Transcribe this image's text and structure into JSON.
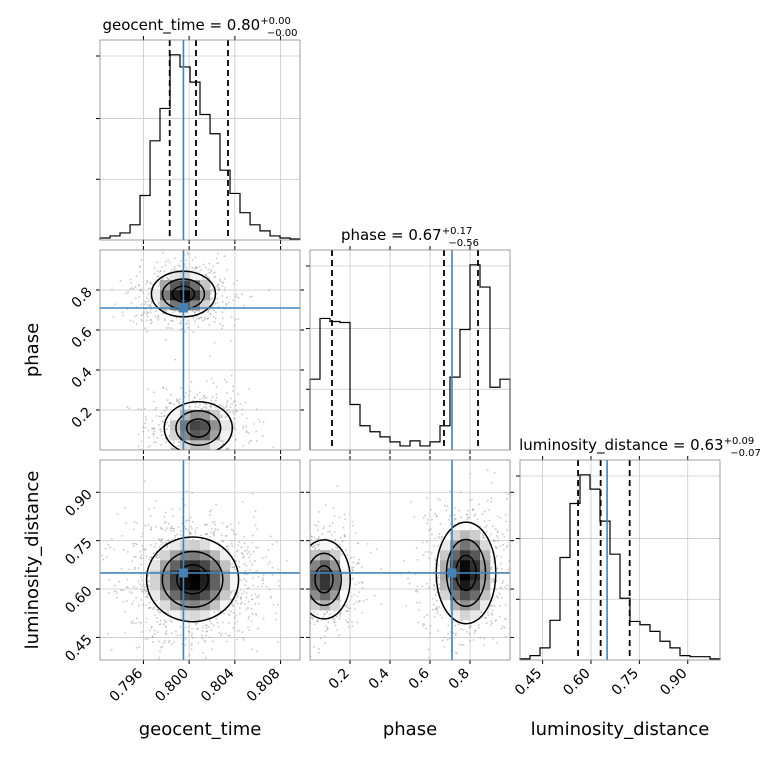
{
  "chart_data": {
    "type": "corner",
    "parameters": [
      "geocent_time",
      "phase",
      "luminosity_distance"
    ],
    "truths": {
      "geocent_time": 0.7995,
      "phase": 0.71,
      "luminosity_distance": 0.65
    },
    "titles": {
      "geocent_time": {
        "prefix": "geocent_time = ",
        "median": "0.80",
        "plus": "+0.00",
        "minus": "−0.00"
      },
      "phase": {
        "prefix": "phase = ",
        "median": "0.67",
        "plus": "+0.17",
        "minus": "−0.56"
      },
      "luminosity_distance": {
        "prefix": "luminosity_distance = ",
        "median": "0.63",
        "plus": "+0.09",
        "minus": "−0.07"
      }
    },
    "ranges": {
      "geocent_time": [
        0.7922,
        0.8097
      ],
      "phase": [
        0.0,
        1.0
      ],
      "luminosity_distance": [
        0.38,
        1.0
      ]
    },
    "ticks": {
      "geocent_time": {
        "values": [
          0.796,
          0.8,
          0.804,
          0.808
        ],
        "labels": [
          "0.796",
          "0.800",
          "0.804",
          "0.808"
        ]
      },
      "phase": {
        "values": [
          0.2,
          0.4,
          0.6,
          0.8
        ],
        "labels": [
          "0.2",
          "0.4",
          "0.6",
          "0.8"
        ]
      },
      "luminosity_distance": {
        "values": [
          0.45,
          0.6,
          0.75,
          0.9
        ],
        "labels": [
          "0.45",
          "0.60",
          "0.75",
          "0.90"
        ]
      }
    },
    "quantiles": {
      "geocent_time": [
        0.7983,
        0.8006,
        0.8034
      ],
      "phase": [
        0.11,
        0.67,
        0.84
      ],
      "luminosity_distance": [
        0.56,
        0.63,
        0.72
      ]
    },
    "histograms": {
      "geocent_time": {
        "edges": [
          0.7922,
          0.79308,
          0.79395,
          0.79483,
          0.7957,
          0.79658,
          0.79745,
          0.79833,
          0.7992,
          0.80008,
          0.80095,
          0.80183,
          0.8027,
          0.80358,
          0.80445,
          0.80533,
          0.8062,
          0.80708,
          0.80795,
          0.80883,
          0.8097
        ],
        "counts": [
          2,
          4,
          7,
          15,
          44,
          98,
          130,
          183,
          171,
          156,
          124,
          105,
          69,
          46,
          27,
          15,
          9,
          4,
          2,
          1
        ]
      },
      "phase": {
        "edges": [
          0.0,
          0.05,
          0.1,
          0.15,
          0.2,
          0.25,
          0.3,
          0.35,
          0.4,
          0.45,
          0.5,
          0.55,
          0.6,
          0.65,
          0.7,
          0.75,
          0.8,
          0.85,
          0.9,
          0.95,
          1.0
        ],
        "counts": [
          70,
          130,
          127,
          126,
          45,
          24,
          18,
          13,
          8,
          4,
          9,
          4,
          8,
          24,
          72,
          119,
          183,
          161,
          62,
          70
        ]
      },
      "luminosity_distance": {
        "edges": [
          0.38,
          0.411,
          0.442,
          0.473,
          0.504,
          0.535,
          0.566,
          0.597,
          0.628,
          0.659,
          0.69,
          0.721,
          0.752,
          0.783,
          0.814,
          0.845,
          0.876,
          0.907,
          0.938,
          0.969,
          1.0
        ],
        "counts": [
          1,
          4,
          11,
          36,
          93,
          142,
          168,
          155,
          126,
          96,
          56,
          35,
          32,
          26,
          17,
          11,
          4,
          3,
          3,
          1
        ]
      }
    },
    "density_modes": {
      "geocent_time-phase": [
        {
          "x": 0.7995,
          "y": 0.78,
          "sx": 0.0016,
          "sy": 0.065,
          "w": 1.0
        },
        {
          "x": 0.8008,
          "y": 0.11,
          "sx": 0.0017,
          "sy": 0.075,
          "w": 0.8
        }
      ],
      "geocent_time-luminosity_distance": [
        {
          "x": 0.8003,
          "y": 0.63,
          "sx": 0.0023,
          "sy": 0.075,
          "w": 1.0
        }
      ],
      "phase-luminosity_distance": [
        {
          "x": 0.07,
          "y": 0.63,
          "sx": 0.075,
          "sy": 0.07,
          "w": 0.85
        },
        {
          "x": 0.78,
          "y": 0.65,
          "sx": 0.085,
          "sy": 0.09,
          "w": 1.0
        }
      ]
    },
    "grid": true,
    "colors": {
      "truth": "#4682b4",
      "lines": "#000000"
    }
  }
}
